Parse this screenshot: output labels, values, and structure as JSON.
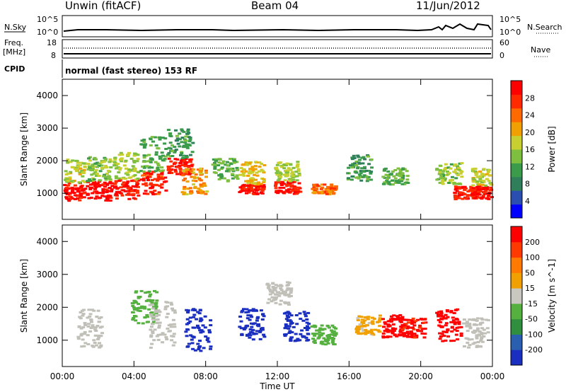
{
  "header": {
    "station": "Unwin (fitACF)",
    "beam": "Beam 04",
    "date": "11/Jun/2012"
  },
  "strip_labels": {
    "nsky": "N.Sky",
    "nsky_ticks": [
      "10^5",
      "10^0"
    ],
    "nsearch": "N.Search",
    "nsearch_ticks": [
      "10^5",
      "10^0"
    ],
    "freq": "Freq.",
    "freq_unit": "[MHz]",
    "freq_ticks": [
      "18",
      "8"
    ],
    "nave": "Nave",
    "nave_ticks": [
      "60",
      "0"
    ],
    "cpid": "CPID",
    "cpid_text": "normal (fast stereo) 153 RF"
  },
  "colors": {
    "power_scale": [
      "#0000ff",
      "#2b4fb0",
      "#2f7f5a",
      "#3a9b4a",
      "#7fbf3f",
      "#c8cf30",
      "#f0a000",
      "#ff6a00",
      "#ff2a00",
      "#ff0000"
    ],
    "velocity_scale": [
      "#1a2fbf",
      "#2a5fb0",
      "#2f8f3f",
      "#55b040",
      "#c8c8c0",
      "#f0a000",
      "#ff7a00",
      "#ff3a00",
      "#ff0000"
    ],
    "ground_scatter": "#c0c0b8"
  },
  "chart_data": [
    {
      "type": "heatmap",
      "name": "power",
      "ylabel": "Slant Range [km]",
      "xlabel": "Time UT",
      "xticks": [
        "00:00",
        "04:00",
        "08:00",
        "12:00",
        "16:00",
        "20:00",
        "00:00"
      ],
      "xlim_hours": [
        0,
        24
      ],
      "yticks": [
        "1000",
        "2000",
        "3000",
        "4000"
      ],
      "ylim": [
        200,
        4500
      ],
      "colorbar": {
        "label": "Power [dB]",
        "ticks": [
          "4",
          "8",
          "12",
          "16",
          "20",
          "24",
          "28"
        ],
        "range": [
          0,
          30
        ]
      },
      "regions": [
        {
          "t": 0.5,
          "r0": 800,
          "r1": 1350,
          "v": 28
        },
        {
          "t": 0.5,
          "r0": 1350,
          "r1": 2100,
          "v": 16
        },
        {
          "t": 2.0,
          "r0": 800,
          "r1": 1400,
          "v": 29
        },
        {
          "t": 2.0,
          "r0": 1400,
          "r1": 2200,
          "v": 14
        },
        {
          "t": 3.5,
          "r0": 850,
          "r1": 1450,
          "v": 27
        },
        {
          "t": 3.5,
          "r0": 1450,
          "r1": 2300,
          "v": 15
        },
        {
          "t": 5.0,
          "r0": 1000,
          "r1": 1700,
          "v": 26
        },
        {
          "t": 5.0,
          "r0": 1700,
          "r1": 2800,
          "v": 12
        },
        {
          "t": 6.5,
          "r0": 1600,
          "r1": 2100,
          "v": 27
        },
        {
          "t": 6.5,
          "r0": 2100,
          "r1": 3000,
          "v": 10
        },
        {
          "t": 7.3,
          "r0": 1000,
          "r1": 1800,
          "v": 20
        },
        {
          "t": 9.0,
          "r0": 1400,
          "r1": 2100,
          "v": 12
        },
        {
          "t": 10.5,
          "r0": 1000,
          "r1": 1300,
          "v": 28
        },
        {
          "t": 10.5,
          "r0": 1300,
          "r1": 2000,
          "v": 18
        },
        {
          "t": 12.5,
          "r0": 1000,
          "r1": 1400,
          "v": 27
        },
        {
          "t": 12.5,
          "r0": 1400,
          "r1": 2000,
          "v": 15
        },
        {
          "t": 14.5,
          "r0": 1000,
          "r1": 1300,
          "v": 22
        },
        {
          "t": 16.5,
          "r0": 1400,
          "r1": 2200,
          "v": 10
        },
        {
          "t": 18.5,
          "r0": 1300,
          "r1": 1800,
          "v": 12
        },
        {
          "t": 21.5,
          "r0": 1300,
          "r1": 2000,
          "v": 14
        },
        {
          "t": 22.5,
          "r0": 850,
          "r1": 1250,
          "v": 27
        },
        {
          "t": 23.5,
          "r0": 850,
          "r1": 1250,
          "v": 28
        },
        {
          "t": 23.5,
          "r0": 1250,
          "r1": 1800,
          "v": 16
        }
      ]
    },
    {
      "type": "heatmap",
      "name": "velocity",
      "ylabel": "Slant Range [km]",
      "xlabel": "Time UT",
      "xticks": [
        "00:00",
        "04:00",
        "08:00",
        "12:00",
        "16:00",
        "20:00",
        "00:00"
      ],
      "xlim_hours": [
        0,
        24
      ],
      "yticks": [
        "1000",
        "2000",
        "3000",
        "4000"
      ],
      "ylim": [
        200,
        4500
      ],
      "colorbar": {
        "label": "Velocity [m s^-1]",
        "ticks": [
          "200",
          "100",
          "50",
          "15",
          "-15",
          "-50",
          "-100",
          "-200"
        ],
        "range": [
          -250,
          250
        ]
      },
      "regions": [
        {
          "t": 1.5,
          "r0": 800,
          "r1": 2000,
          "v": 0
        },
        {
          "t": 4.5,
          "r0": 1500,
          "r1": 2600,
          "v": -60
        },
        {
          "t": 5.5,
          "r0": 800,
          "r1": 2200,
          "v": 0
        },
        {
          "t": 7.5,
          "r0": 700,
          "r1": 2000,
          "v": -230
        },
        {
          "t": 10.5,
          "r0": 1000,
          "r1": 2000,
          "v": -230
        },
        {
          "t": 13.0,
          "r0": 1000,
          "r1": 1900,
          "v": -230
        },
        {
          "t": 14.5,
          "r0": 900,
          "r1": 1500,
          "v": -60
        },
        {
          "t": 12.0,
          "r0": 2100,
          "r1": 2800,
          "v": 0
        },
        {
          "t": 17.0,
          "r0": 1200,
          "r1": 1800,
          "v": 40
        },
        {
          "t": 18.5,
          "r0": 1100,
          "r1": 1800,
          "v": 210
        },
        {
          "t": 19.5,
          "r0": 1100,
          "r1": 1700,
          "v": 200
        },
        {
          "t": 21.5,
          "r0": 1000,
          "r1": 2000,
          "v": 220
        },
        {
          "t": 23.0,
          "r0": 800,
          "r1": 1700,
          "v": 0
        }
      ]
    }
  ]
}
